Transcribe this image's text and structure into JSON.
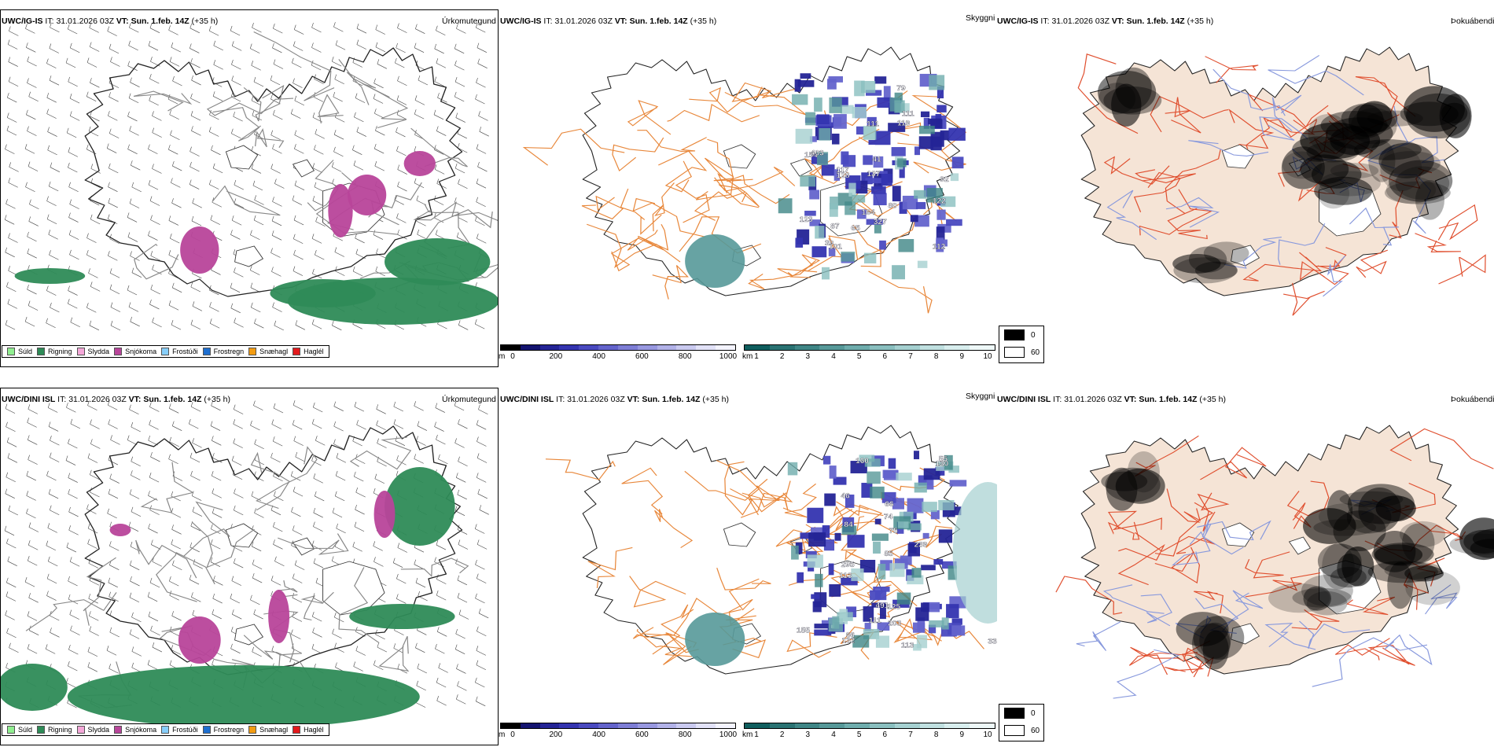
{
  "rows": [
    {
      "model": "UWC/IG-IS",
      "it_label": "IT:",
      "it_value": "31.01.2026 03Z",
      "vt_label": "VT:",
      "vt_value": "Sun. 1.feb. 14Z",
      "lead": "(+35 h)",
      "precip_title": "Úrkomutegund",
      "cloud_title": "Skyggni",
      "fog_title": "Þokuábendi",
      "visibility_labels": [
        "79",
        "87",
        "65",
        "80",
        "123",
        "117",
        "164",
        "111",
        "128",
        "137",
        "122",
        "111",
        "154",
        "119",
        "112",
        "327",
        "403",
        "101",
        "39",
        "41",
        "92"
      ]
    },
    {
      "model": "UWC/DINI ISL",
      "it_label": "IT:",
      "it_value": "31.01.2026 03Z",
      "vt_label": "VT:",
      "vt_value": "Sun. 1.feb. 14Z",
      "lead": "(+35 h)",
      "precip_title": "Úrkomutegund",
      "cloud_title": "Skyggni",
      "fog_title": "Þokuábendi",
      "visibility_labels": [
        "74",
        "66",
        "335",
        "155",
        "113",
        "130",
        "85",
        "84",
        "55",
        "125",
        "111",
        "46",
        "160",
        "491",
        "132",
        "113",
        "239",
        "295",
        "203",
        "66",
        "75"
      ]
    }
  ],
  "precip_legend": [
    {
      "label": "Súld",
      "color": "#90ee90"
    },
    {
      "label": "Rigning",
      "color": "#2e8b57"
    },
    {
      "label": "Slydda",
      "color": "#f4a7d8"
    },
    {
      "label": "Snjókoma",
      "color": "#b8459a"
    },
    {
      "label": "Frostúði",
      "color": "#87cefa"
    },
    {
      "label": "Frostregn",
      "color": "#1e6fd0"
    },
    {
      "label": "Snæhagl",
      "color": "#f39c12"
    },
    {
      "label": "Haglél",
      "color": "#e31a1c"
    }
  ],
  "cloud_base_scale": {
    "unit": "m",
    "ticks": [
      "0",
      "200",
      "400",
      "600",
      "800",
      "1000"
    ],
    "colors": [
      "#000000",
      "#141470",
      "#242496",
      "#3434b0",
      "#4a4ac0",
      "#6464cc",
      "#7e7ed6",
      "#9898e0",
      "#b2b2e8",
      "#cacaf0",
      "#e2e2f8",
      "#f4f4ff"
    ]
  },
  "visibility_scale": {
    "unit": "km",
    "ticks": [
      "1",
      "2",
      "3",
      "4",
      "5",
      "6",
      "7",
      "8",
      "9",
      "10"
    ],
    "colors": [
      "#0f5e5e",
      "#2a7373",
      "#3f8686",
      "#579999",
      "#6fadad",
      "#8abfbf",
      "#a5d0d0",
      "#c0e0e0",
      "#d8eeee",
      "#eef8f8"
    ]
  },
  "fog_legend": [
    {
      "label": "0",
      "color": "#000000"
    },
    {
      "label": "60",
      "color": "#ffffff"
    }
  ],
  "colors": {
    "rain": "#2e8b57",
    "snow": "#b8459a",
    "land_fog": "#f5e4d6",
    "roads": "#e8873a",
    "roads_red": "#e05030",
    "rivers": "#8899dd",
    "coast": "#111111"
  }
}
